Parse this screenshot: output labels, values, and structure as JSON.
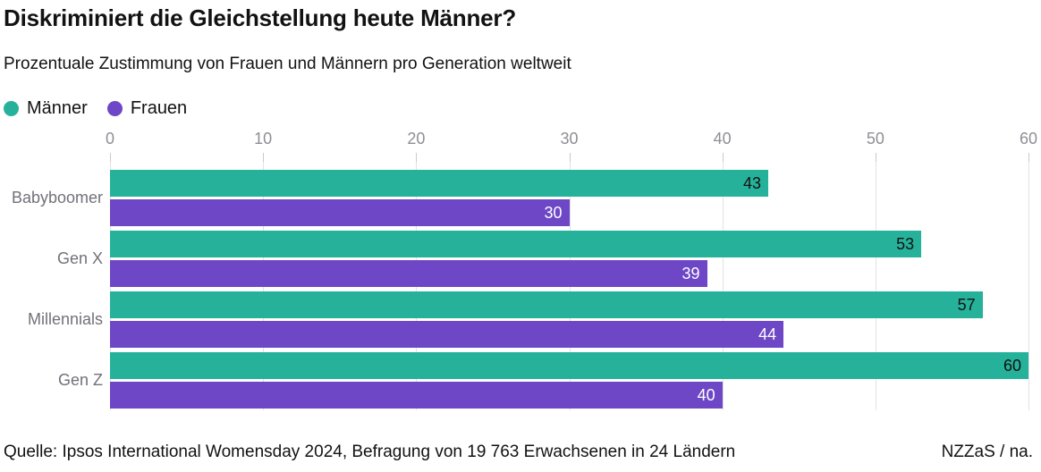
{
  "header": {
    "title": "Diskriminiert die Gleichstellung heute Männer?",
    "subtitle": "Prozentuale Zustimmung von Frauen und Männern pro Generation weltweit"
  },
  "chart_data": {
    "type": "bar",
    "orientation": "horizontal",
    "title": "Diskriminiert die Gleichstellung heute Männer?",
    "subtitle": "Prozentuale Zustimmung von Frauen und Männern pro Generation weltweit",
    "categories": [
      "Babyboomer",
      "Gen X",
      "Millennials",
      "Gen Z"
    ],
    "series": [
      {
        "name": "Männer",
        "color": "#26b29a",
        "value_label_color": "#111111",
        "values": [
          43,
          53,
          57,
          60
        ]
      },
      {
        "name": "Frauen",
        "color": "#6d47c6",
        "value_label_color": "#ffffff",
        "values": [
          30,
          39,
          44,
          40
        ]
      }
    ],
    "xlim": [
      0,
      60
    ],
    "x_ticks": [
      0,
      10,
      20,
      30,
      40,
      50,
      60
    ],
    "grid": "vertical",
    "legend_position": "top-left",
    "value_labels": "inside-end"
  },
  "footer": {
    "source": "Quelle: Ipsos International Womensday 2024, Befragung von 19 763 Erwachsenen in 24 Ländern",
    "credit": "NZZaS / na."
  },
  "colors": {
    "maenner": "#26b29a",
    "frauen": "#6d47c6",
    "tick_label": "#8e8e96",
    "category_label": "#71717a",
    "gridline": "#e2e2e6",
    "text": "#121212"
  }
}
